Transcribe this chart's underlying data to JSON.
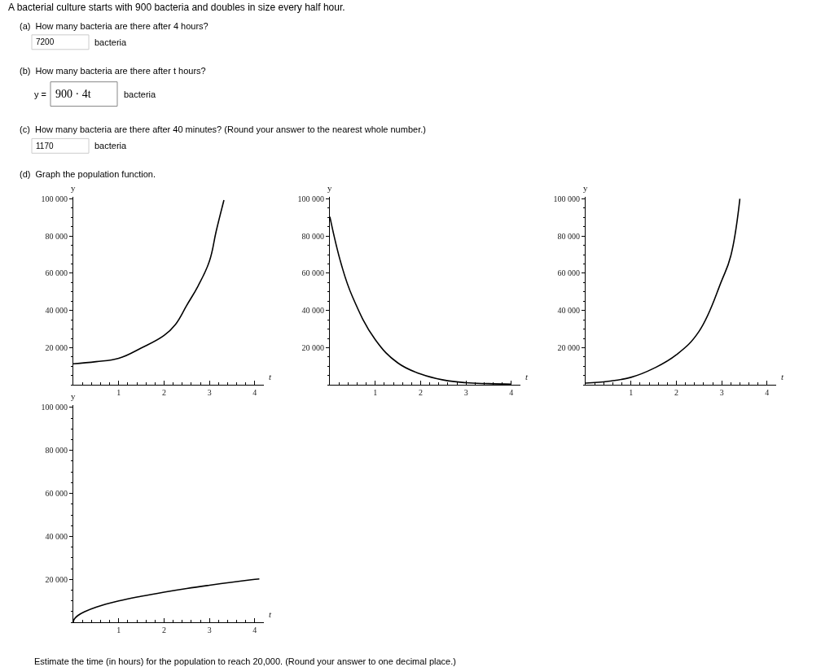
{
  "chart_data": [
    {
      "type": "line",
      "xlabel": "t",
      "ylabel": "y",
      "annotations": [
        "A bacterial culture starts with 900 bacteria and doubles in size every half hour.",
        "(a)  How many bacteria are there after 4 hours?",
        "7200",
        "bacteria",
        "(b)  How many bacteria are there after t hours?",
        "y =",
        "900 · 4t",
        "bacteria",
        "(c)  How many bacteria are there after 40 minutes? (Round your answer to the nearest whole number.)",
        "1170",
        "bacteria",
        "(d)  Graph the population function."
      ],
      "series": [
        {
          "color": "#000000",
          "x": [
            0,
            0.5,
            1,
            1.5,
            2,
            2.25,
            2.5,
            2.75,
            3,
            3.15,
            3.32
          ],
          "values": [
            11400,
            12500,
            14300,
            19900,
            26600,
            32500,
            42800,
            53200,
            66500,
            82700,
            99300
          ]
        }
      ],
      "xlim": [
        0,
        4.2
      ],
      "ylim": [
        0,
        101000
      ],
      "xticks": [
        1,
        2,
        3,
        4
      ],
      "yticks": [
        {
          "value": 20000,
          "label": "20 000"
        },
        {
          "value": 40000,
          "label": "40 000"
        },
        {
          "value": 60000,
          "label": "60 000"
        },
        {
          "value": 80000,
          "label": "80 000"
        },
        {
          "value": 100000,
          "label": "100 000"
        }
      ],
      "marker": "none",
      "line_style": "solid"
    },
    {
      "type": "line",
      "xlabel": "t",
      "ylabel": "y",
      "series": [
        {
          "color": "#000000",
          "x": [
            0,
            0.25,
            0.5,
            1,
            1.5,
            2,
            2.5,
            3,
            3.5,
            4
          ],
          "values": [
            90400,
            65000,
            47300,
            24400,
            11800,
            5900,
            2700,
            1200,
            700,
            400
          ]
        }
      ],
      "xlim": [
        0,
        4.2
      ],
      "ylim": [
        0,
        101000
      ],
      "xticks": [
        1,
        2,
        3,
        4
      ],
      "yticks": [
        {
          "value": 20000,
          "label": "20 000"
        },
        {
          "value": 40000,
          "label": "40 000"
        },
        {
          "value": 60000,
          "label": "60 000"
        },
        {
          "value": 80000,
          "label": "80 000"
        },
        {
          "value": 100000,
          "label": "100 000"
        }
      ],
      "marker": "none",
      "line_style": "solid"
    },
    {
      "type": "line",
      "xlabel": "t",
      "ylabel": "y",
      "series": [
        {
          "color": "#000000",
          "x": [
            0,
            0.5,
            1,
            1.5,
            2,
            2.5,
            3,
            3.2,
            3.4
          ],
          "values": [
            1000,
            2000,
            4100,
            8900,
            16200,
            28800,
            56100,
            69400,
            100000
          ]
        }
      ],
      "xlim": [
        0,
        4.2
      ],
      "ylim": [
        0,
        101000
      ],
      "xticks": [
        1,
        2,
        3,
        4
      ],
      "yticks": [
        {
          "value": 20000,
          "label": "20 000"
        },
        {
          "value": 40000,
          "label": "40 000"
        },
        {
          "value": 60000,
          "label": "60 000"
        },
        {
          "value": 80000,
          "label": "80 000"
        },
        {
          "value": 100000,
          "label": "100 000"
        }
      ],
      "marker": "none",
      "line_style": "solid"
    },
    {
      "type": "line",
      "xlabel": "t",
      "ylabel": "y",
      "annotations": [
        "Estimate the time (in hours) for the population to reach 20,000. (Round your answer to one decimal place.)"
      ],
      "series": [
        {
          "color": "#000000",
          "x": [
            0,
            0.02,
            0.1,
            0.25,
            0.5,
            1,
            1.5,
            2,
            2.5,
            3,
            3.5,
            4,
            4.1
          ],
          "values": [
            0,
            1500,
            3200,
            5000,
            7100,
            10000,
            12200,
            14100,
            15800,
            17300,
            18700,
            20000,
            20200
          ]
        }
      ],
      "xlim": [
        0,
        4.2
      ],
      "ylim": [
        0,
        101000
      ],
      "xticks": [
        1,
        2,
        3,
        4
      ],
      "yticks": [
        {
          "value": 20000,
          "label": "20 000"
        },
        {
          "value": 40000,
          "label": "40 000"
        },
        {
          "value": 60000,
          "label": "60 000"
        },
        {
          "value": 80000,
          "label": "80 000"
        },
        {
          "value": 100000,
          "label": "100 000"
        }
      ],
      "marker": "none",
      "line_style": "solid"
    }
  ]
}
